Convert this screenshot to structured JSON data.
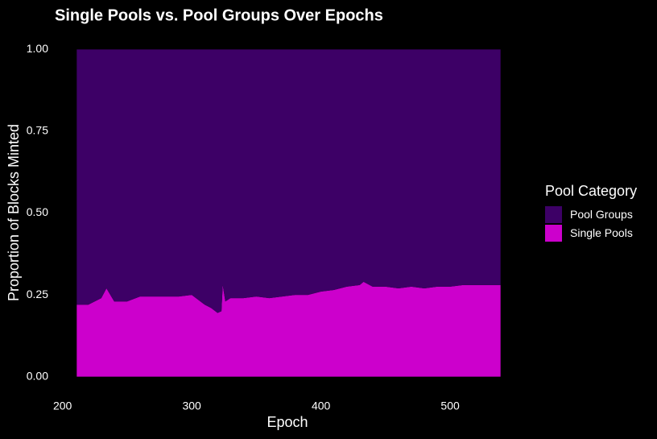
{
  "chart_data": {
    "type": "stacked_area",
    "title": "Single Pools vs. Pool Groups Over Epochs",
    "x_label": "Epoch",
    "y_label": "Proportion of Blocks Minted",
    "legend_title": "Pool Category",
    "legend_position": "right",
    "grid": false,
    "x": [
      211,
      220,
      230,
      234,
      240,
      250,
      260,
      270,
      280,
      290,
      300,
      310,
      315,
      320,
      323,
      324,
      326,
      330,
      340,
      350,
      360,
      370,
      380,
      390,
      400,
      410,
      420,
      430,
      433,
      440,
      450,
      460,
      470,
      480,
      490,
      500,
      510,
      520,
      530,
      539
    ],
    "series": [
      {
        "name": "Pool Groups",
        "color": "#3d0066",
        "values": [
          0.78,
          0.78,
          0.76,
          0.73,
          0.77,
          0.77,
          0.755,
          0.755,
          0.755,
          0.755,
          0.75,
          0.78,
          0.79,
          0.805,
          0.8,
          0.72,
          0.77,
          0.76,
          0.76,
          0.755,
          0.76,
          0.755,
          0.75,
          0.75,
          0.74,
          0.735,
          0.725,
          0.72,
          0.71,
          0.725,
          0.725,
          0.73,
          0.725,
          0.73,
          0.725,
          0.725,
          0.72,
          0.72,
          0.72,
          0.72
        ]
      },
      {
        "name": "Single Pools",
        "color": "#cc00cc",
        "values": [
          0.22,
          0.22,
          0.24,
          0.27,
          0.23,
          0.23,
          0.245,
          0.245,
          0.245,
          0.245,
          0.25,
          0.22,
          0.21,
          0.195,
          0.2,
          0.28,
          0.23,
          0.24,
          0.24,
          0.245,
          0.24,
          0.245,
          0.25,
          0.25,
          0.26,
          0.265,
          0.275,
          0.28,
          0.29,
          0.275,
          0.275,
          0.27,
          0.275,
          0.27,
          0.275,
          0.275,
          0.28,
          0.28,
          0.28,
          0.28
        ]
      }
    ],
    "xlim": [
      194.6,
      555.4
    ],
    "xticks": [
      200,
      300,
      400,
      500
    ],
    "ylim": [
      -0.05,
      1.05
    ],
    "yticks": [
      {
        "value": 0,
        "label": "0.00"
      },
      {
        "value": 0.25,
        "label": "0.25"
      },
      {
        "value": 0.5,
        "label": "0.50"
      },
      {
        "value": 0.75,
        "label": "0.75"
      },
      {
        "value": 1,
        "label": "1.00"
      }
    ]
  }
}
